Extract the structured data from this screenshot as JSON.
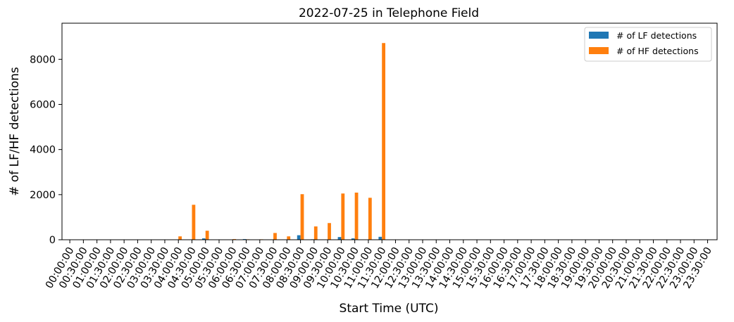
{
  "chart_data": {
    "type": "bar",
    "title": "2022-07-25 in Telephone Field",
    "xlabel": "Start Time (UTC)",
    "ylabel": "# of LF/HF detections",
    "ylim": [
      0,
      9600
    ],
    "yticks": [
      0,
      2000,
      4000,
      6000,
      8000
    ],
    "grid": false,
    "legend_position": "top-right",
    "categories": [
      "00:00:00",
      "00:30:00",
      "01:00:00",
      "01:30:00",
      "02:00:00",
      "02:30:00",
      "03:00:00",
      "03:30:00",
      "04:00:00",
      "04:30:00",
      "05:00:00",
      "05:30:00",
      "06:00:00",
      "06:30:00",
      "07:00:00",
      "07:30:00",
      "08:00:00",
      "08:30:00",
      "09:00:00",
      "09:30:00",
      "10:00:00",
      "10:30:00",
      "11:00:00",
      "11:30:00",
      "12:00:00",
      "12:30:00",
      "13:00:00",
      "13:30:00",
      "14:00:00",
      "14:30:00",
      "15:00:00",
      "15:30:00",
      "16:00:00",
      "16:30:00",
      "17:00:00",
      "17:30:00",
      "18:00:00",
      "18:30:00",
      "19:00:00",
      "19:30:00",
      "20:00:00",
      "20:30:00",
      "21:00:00",
      "21:30:00",
      "22:00:00",
      "22:30:00",
      "23:00:00",
      "23:30:00"
    ],
    "series": [
      {
        "name": "# of LF detections",
        "color": "#1f77b4",
        "values": [
          0,
          0,
          0,
          0,
          0,
          0,
          0,
          0,
          5,
          10,
          60,
          5,
          10,
          30,
          5,
          10,
          10,
          200,
          20,
          5,
          120,
          60,
          5,
          130,
          0,
          0,
          0,
          0,
          0,
          0,
          0,
          0,
          0,
          0,
          0,
          0,
          0,
          0,
          0,
          0,
          0,
          0,
          0,
          0,
          0,
          0,
          0,
          0
        ]
      },
      {
        "name": "# of HF detections",
        "color": "#ff7f0e",
        "values": [
          0,
          0,
          0,
          0,
          0,
          0,
          0,
          0,
          150,
          1550,
          400,
          10,
          30,
          20,
          20,
          300,
          150,
          2020,
          590,
          740,
          2050,
          2090,
          1860,
          8720,
          0,
          0,
          0,
          0,
          0,
          0,
          0,
          0,
          0,
          0,
          0,
          0,
          0,
          0,
          0,
          0,
          0,
          0,
          0,
          0,
          0,
          0,
          0,
          0
        ]
      }
    ]
  }
}
